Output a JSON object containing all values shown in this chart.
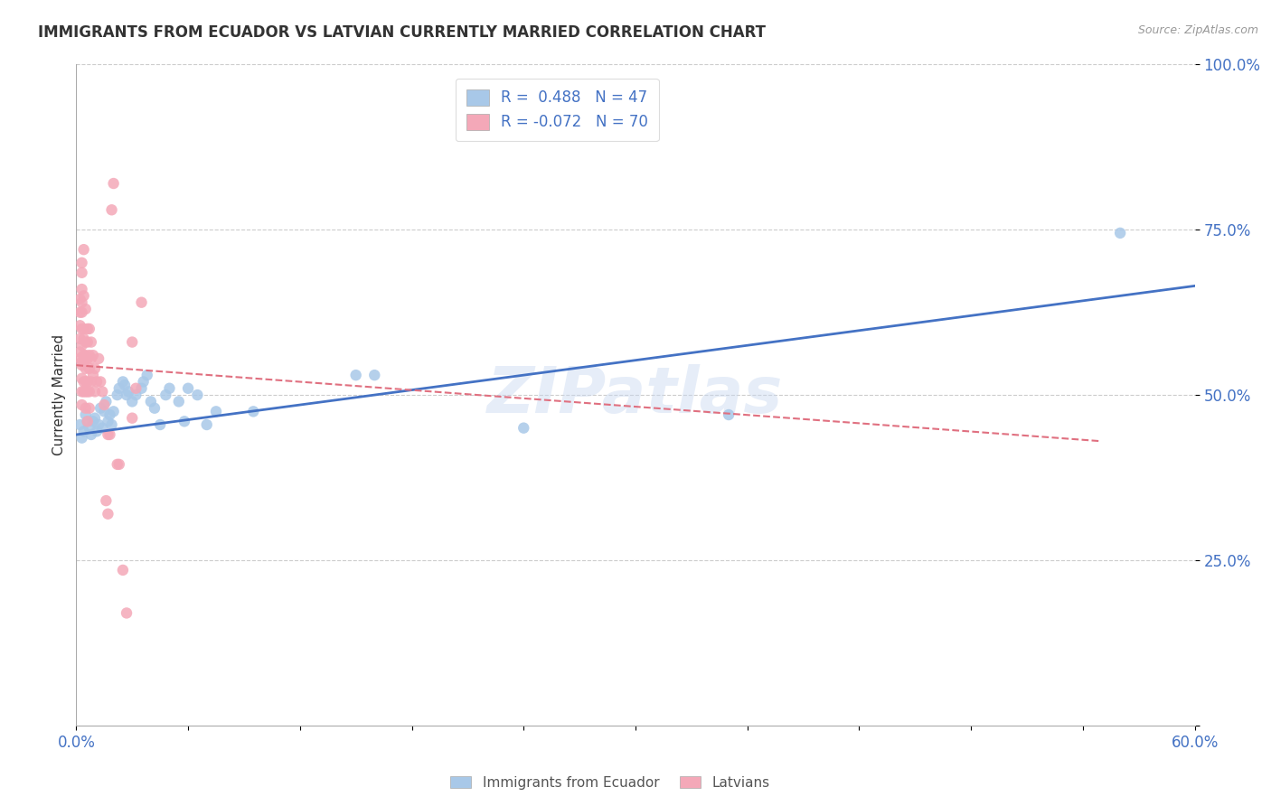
{
  "title": "IMMIGRANTS FROM ECUADOR VS LATVIAN CURRENTLY MARRIED CORRELATION CHART",
  "source": "Source: ZipAtlas.com",
  "ylabel": "Currently Married",
  "watermark": "ZIPatlas",
  "blue_color": "#A8C8E8",
  "pink_color": "#F4A8B8",
  "blue_line_color": "#4472C4",
  "pink_line_color": "#E07080",
  "blue_scatter": [
    [
      0.002,
      0.455
    ],
    [
      0.003,
      0.435
    ],
    [
      0.004,
      0.445
    ],
    [
      0.005,
      0.47
    ],
    [
      0.006,
      0.46
    ],
    [
      0.007,
      0.45
    ],
    [
      0.008,
      0.44
    ],
    [
      0.009,
      0.46
    ],
    [
      0.01,
      0.465
    ],
    [
      0.011,
      0.445
    ],
    [
      0.012,
      0.455
    ],
    [
      0.013,
      0.48
    ],
    [
      0.014,
      0.45
    ],
    [
      0.015,
      0.475
    ],
    [
      0.016,
      0.49
    ],
    [
      0.017,
      0.46
    ],
    [
      0.018,
      0.47
    ],
    [
      0.019,
      0.455
    ],
    [
      0.02,
      0.475
    ],
    [
      0.022,
      0.5
    ],
    [
      0.023,
      0.51
    ],
    [
      0.025,
      0.52
    ],
    [
      0.026,
      0.515
    ],
    [
      0.027,
      0.5
    ],
    [
      0.028,
      0.505
    ],
    [
      0.03,
      0.49
    ],
    [
      0.032,
      0.5
    ],
    [
      0.035,
      0.51
    ],
    [
      0.036,
      0.52
    ],
    [
      0.038,
      0.53
    ],
    [
      0.04,
      0.49
    ],
    [
      0.042,
      0.48
    ],
    [
      0.045,
      0.455
    ],
    [
      0.048,
      0.5
    ],
    [
      0.05,
      0.51
    ],
    [
      0.055,
      0.49
    ],
    [
      0.058,
      0.46
    ],
    [
      0.06,
      0.51
    ],
    [
      0.065,
      0.5
    ],
    [
      0.07,
      0.455
    ],
    [
      0.075,
      0.475
    ],
    [
      0.095,
      0.475
    ],
    [
      0.15,
      0.53
    ],
    [
      0.16,
      0.53
    ],
    [
      0.24,
      0.45
    ],
    [
      0.35,
      0.47
    ],
    [
      0.56,
      0.745
    ]
  ],
  "pink_scatter": [
    [
      0.002,
      0.625
    ],
    [
      0.002,
      0.565
    ],
    [
      0.002,
      0.605
    ],
    [
      0.002,
      0.585
    ],
    [
      0.002,
      0.645
    ],
    [
      0.002,
      0.555
    ],
    [
      0.003,
      0.6
    ],
    [
      0.003,
      0.575
    ],
    [
      0.003,
      0.55
    ],
    [
      0.003,
      0.625
    ],
    [
      0.003,
      0.64
    ],
    [
      0.003,
      0.66
    ],
    [
      0.003,
      0.685
    ],
    [
      0.003,
      0.7
    ],
    [
      0.003,
      0.545
    ],
    [
      0.003,
      0.525
    ],
    [
      0.003,
      0.505
    ],
    [
      0.003,
      0.485
    ],
    [
      0.004,
      0.65
    ],
    [
      0.004,
      0.6
    ],
    [
      0.004,
      0.585
    ],
    [
      0.004,
      0.56
    ],
    [
      0.004,
      0.55
    ],
    [
      0.004,
      0.52
    ],
    [
      0.004,
      0.505
    ],
    [
      0.004,
      0.72
    ],
    [
      0.005,
      0.63
    ],
    [
      0.005,
      0.58
    ],
    [
      0.005,
      0.56
    ],
    [
      0.005,
      0.54
    ],
    [
      0.005,
      0.52
    ],
    [
      0.005,
      0.505
    ],
    [
      0.005,
      0.48
    ],
    [
      0.006,
      0.6
    ],
    [
      0.006,
      0.58
    ],
    [
      0.006,
      0.555
    ],
    [
      0.006,
      0.52
    ],
    [
      0.006,
      0.505
    ],
    [
      0.006,
      0.46
    ],
    [
      0.007,
      0.6
    ],
    [
      0.007,
      0.56
    ],
    [
      0.007,
      0.54
    ],
    [
      0.007,
      0.505
    ],
    [
      0.007,
      0.48
    ],
    [
      0.008,
      0.58
    ],
    [
      0.008,
      0.555
    ],
    [
      0.008,
      0.52
    ],
    [
      0.009,
      0.56
    ],
    [
      0.009,
      0.53
    ],
    [
      0.01,
      0.54
    ],
    [
      0.01,
      0.505
    ],
    [
      0.011,
      0.52
    ],
    [
      0.012,
      0.555
    ],
    [
      0.013,
      0.52
    ],
    [
      0.014,
      0.505
    ],
    [
      0.015,
      0.485
    ],
    [
      0.016,
      0.34
    ],
    [
      0.017,
      0.32
    ],
    [
      0.017,
      0.44
    ],
    [
      0.018,
      0.44
    ],
    [
      0.019,
      0.78
    ],
    [
      0.02,
      0.82
    ],
    [
      0.022,
      0.395
    ],
    [
      0.023,
      0.395
    ],
    [
      0.025,
      0.235
    ],
    [
      0.027,
      0.17
    ],
    [
      0.03,
      0.58
    ],
    [
      0.03,
      0.465
    ],
    [
      0.032,
      0.51
    ],
    [
      0.035,
      0.64
    ]
  ],
  "xmin": 0.0,
  "xmax": 0.6,
  "ymin": 0.0,
  "ymax": 1.0,
  "blue_trend": [
    0.0,
    0.6,
    0.44,
    0.665
  ],
  "pink_trend": [
    0.0,
    0.55,
    0.545,
    0.43
  ]
}
